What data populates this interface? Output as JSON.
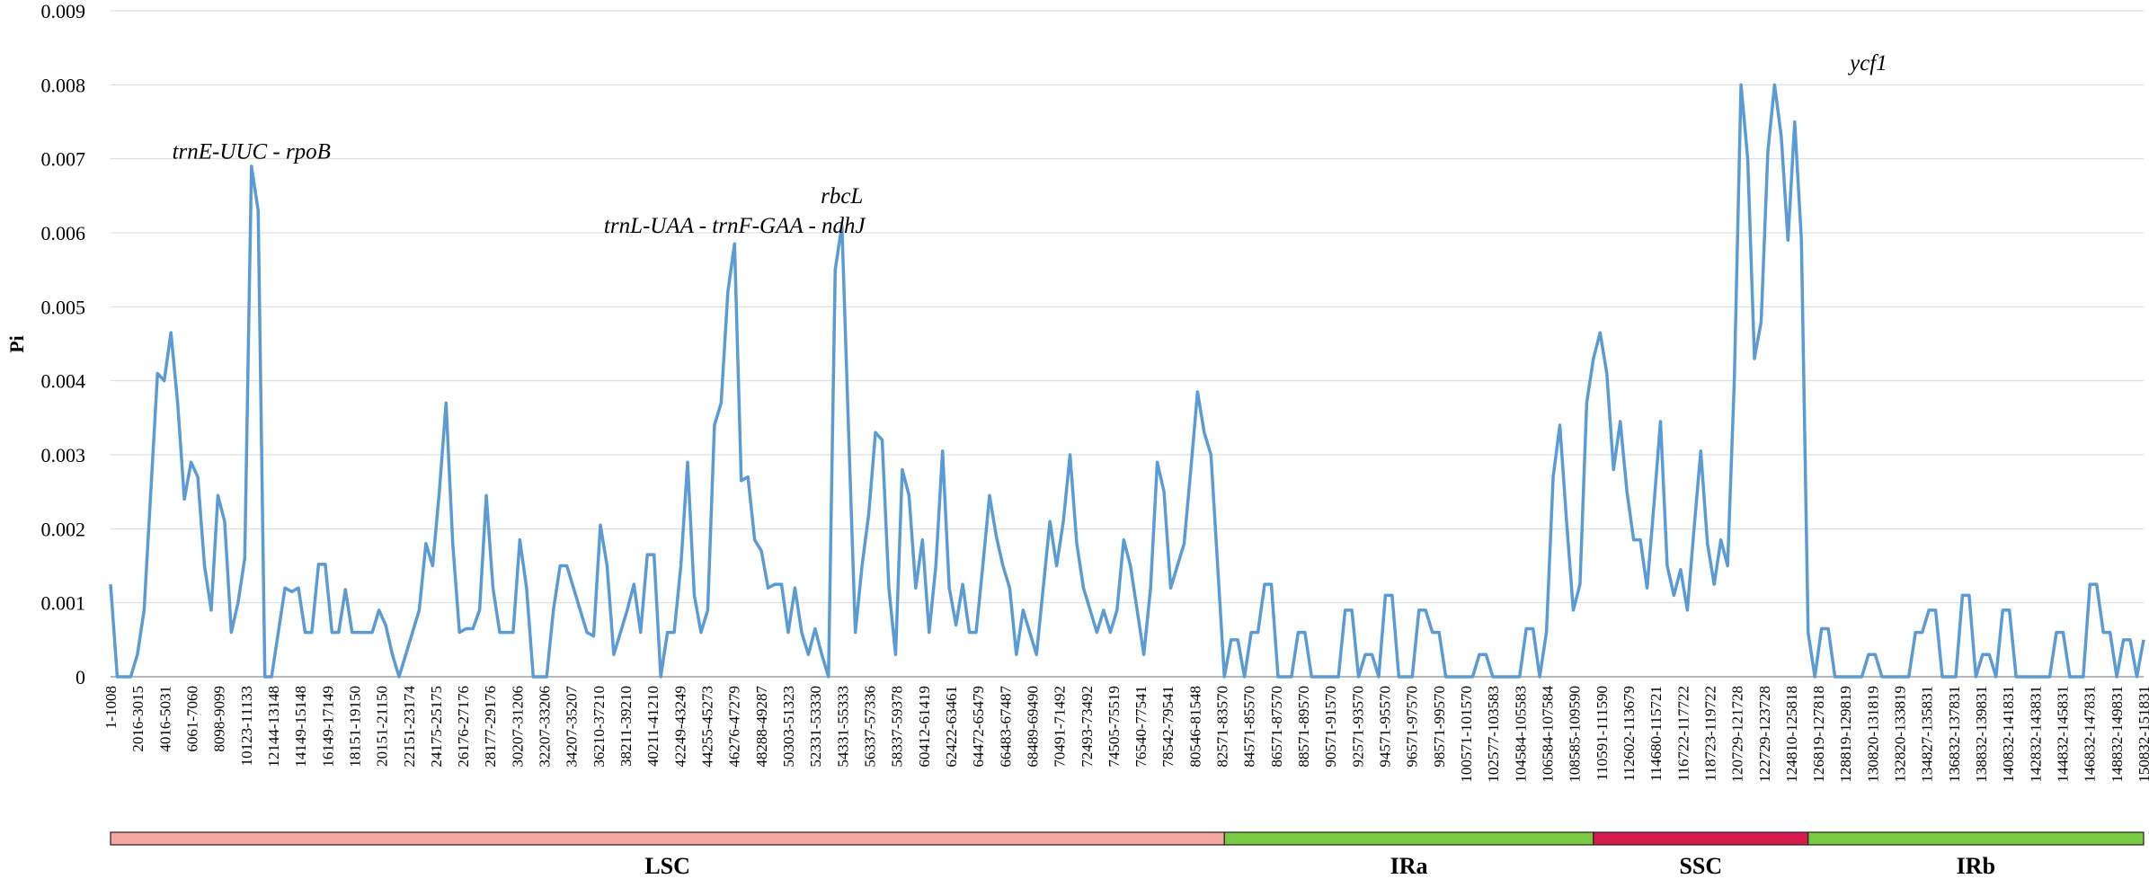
{
  "chart_data": {
    "type": "line",
    "ylabel": "Pi",
    "ylim": [
      0,
      0.009
    ],
    "y_ticks": [
      "0",
      "0.001",
      "0.002",
      "0.003",
      "0.004",
      "0.005",
      "0.006",
      "0.007",
      "0.008",
      "0.009"
    ],
    "grid": "horizontal",
    "x_tick_labels": [
      "1-1008",
      "2016-3015",
      "4016-5031",
      "6061-7060",
      "8098-9099",
      "10123-11133",
      "12144-13148",
      "14149-15148",
      "16149-17149",
      "18151-19150",
      "20151-21150",
      "22151-23174",
      "24175-25175",
      "26176-27176",
      "28177-29176",
      "30207-31206",
      "32207-33206",
      "34207-35207",
      "36210-37210",
      "38211-39210",
      "40211-41210",
      "42249-43249",
      "44255-45273",
      "46276-47279",
      "48288-49287",
      "50303-51323",
      "52331-53330",
      "54331-55333",
      "56337-57336",
      "58337-59378",
      "60412-61419",
      "62422-63461",
      "64472-65479",
      "66483-67487",
      "68489-69490",
      "70491-71492",
      "72493-73492",
      "74505-75519",
      "76540-77541",
      "78542-79541",
      "80546-81548",
      "82571-83570",
      "84571-85570",
      "86571-87570",
      "88571-89570",
      "90571-91570",
      "92571-93570",
      "94571-95570",
      "96571-97570",
      "98571-99570",
      "100571-101570",
      "102577-103583",
      "104584-105583",
      "106584-107584",
      "108585-109590",
      "110591-111590",
      "112602-113679",
      "114680-115721",
      "116722-117722",
      "118723-119722",
      "120729-121728",
      "122729-123728",
      "124810-125818",
      "126819-127818",
      "128819-129819",
      "130820-131819",
      "132820-133819",
      "134827-135831",
      "136832-137831",
      "138832-139831",
      "140832-141831",
      "142832-143831",
      "144832-145831",
      "146832-147831",
      "148832-149831",
      "150832-151831"
    ],
    "series": [
      {
        "values": [
          0.00125,
          0.0,
          0.0,
          0.0,
          0.0003,
          0.0009,
          0.0025,
          0.0041,
          0.004,
          0.00465,
          0.0037,
          0.0024,
          0.0029,
          0.0027,
          0.0015,
          0.0009,
          0.00245,
          0.0021,
          0.0006,
          0.001,
          0.0016,
          0.0069,
          0.0063,
          0.0,
          0.0,
          0.0006,
          0.0012,
          0.00115,
          0.0012,
          0.0006,
          0.0006,
          0.00152,
          0.00152,
          0.0006,
          0.0006,
          0.00118,
          0.0006,
          0.0006,
          0.0006,
          0.0006,
          0.0009,
          0.0007,
          0.0003,
          0.0,
          0.0003,
          0.0006,
          0.0009,
          0.0018,
          0.0015,
          0.0025,
          0.0037,
          0.0018,
          0.0006,
          0.00065,
          0.00065,
          0.0009,
          0.00245,
          0.0012,
          0.0006,
          0.0006,
          0.0006,
          0.00185,
          0.0012,
          0.0,
          0.0,
          0.0,
          0.0009,
          0.0015,
          0.0015,
          0.0012,
          0.0009,
          0.0006,
          0.00055,
          0.00205,
          0.0015,
          0.0003,
          0.0006,
          0.0009,
          0.00125,
          0.0006,
          0.00165,
          0.00165,
          0.0,
          0.0006,
          0.0006,
          0.0015,
          0.0029,
          0.0011,
          0.0006,
          0.0009,
          0.0034,
          0.0037,
          0.0052,
          0.00585,
          0.00265,
          0.0027,
          0.00185,
          0.0017,
          0.0012,
          0.00125,
          0.00125,
          0.0006,
          0.0012,
          0.0006,
          0.0003,
          0.00065,
          0.0003,
          0.0,
          0.0055,
          0.0061,
          0.0033,
          0.0006,
          0.0015,
          0.0022,
          0.0033,
          0.0032,
          0.0012,
          0.0003,
          0.0028,
          0.00245,
          0.0012,
          0.00185,
          0.0006,
          0.0015,
          0.00305,
          0.0012,
          0.0007,
          0.00125,
          0.0006,
          0.0006,
          0.0015,
          0.00245,
          0.0019,
          0.0015,
          0.0012,
          0.0003,
          0.0009,
          0.0006,
          0.0003,
          0.0012,
          0.0021,
          0.0015,
          0.0021,
          0.003,
          0.0018,
          0.0012,
          0.0009,
          0.0006,
          0.0009,
          0.0006,
          0.0009,
          0.00185,
          0.0015,
          0.0009,
          0.0003,
          0.0012,
          0.0029,
          0.0025,
          0.0012,
          0.0015,
          0.0018,
          0.0028,
          0.00385,
          0.0033,
          0.003,
          0.0015,
          0.0,
          0.0005,
          0.0005,
          0.0,
          0.0006,
          0.0006,
          0.00125,
          0.00125,
          0.0,
          0.0,
          0.0,
          0.0006,
          0.0006,
          0.0,
          0.0,
          0.0,
          0.0,
          0.0,
          0.0009,
          0.0009,
          0.0,
          0.0003,
          0.0003,
          0.0,
          0.0011,
          0.0011,
          0.0,
          0.0,
          0.0,
          0.0009,
          0.0009,
          0.0006,
          0.0006,
          0.0,
          0.0,
          0.0,
          0.0,
          0.0,
          0.0003,
          0.0003,
          0.0,
          0.0,
          0.0,
          0.0,
          0.0,
          0.00065,
          0.00065,
          0.0,
          0.0006,
          0.0027,
          0.0034,
          0.0021,
          0.0009,
          0.00125,
          0.0037,
          0.0043,
          0.00465,
          0.0041,
          0.0028,
          0.00345,
          0.0025,
          0.00185,
          0.00185,
          0.0012,
          0.0023,
          0.00345,
          0.0015,
          0.0011,
          0.00145,
          0.0009,
          0.002,
          0.00305,
          0.0018,
          0.00125,
          0.00185,
          0.0015,
          0.004,
          0.008,
          0.007,
          0.0043,
          0.0048,
          0.0071,
          0.008,
          0.0073,
          0.0059,
          0.0075,
          0.0059,
          0.0006,
          0.0,
          0.00065,
          0.00065,
          0.0,
          0.0,
          0.0,
          0.0,
          0.0,
          0.0003,
          0.0003,
          0.0,
          0.0,
          0.0,
          0.0,
          0.0,
          0.0006,
          0.0006,
          0.0009,
          0.0009,
          0.0,
          0.0,
          0.0,
          0.0011,
          0.0011,
          0.0,
          0.0003,
          0.0003,
          0.0,
          0.0009,
          0.0009,
          0.0,
          0.0,
          0.0,
          0.0,
          0.0,
          0.0,
          0.0006,
          0.0006,
          0.0,
          0.0,
          0.0,
          0.00125,
          0.00125,
          0.0006,
          0.0006,
          0.0,
          0.0005,
          0.0005,
          0.0,
          0.0005
        ]
      }
    ],
    "annotations": [
      {
        "text": "trnE-UUC - rpoB",
        "x_index": 21,
        "y": 0.007
      },
      {
        "text": "trnL-UAA - trnF-GAA - ndhJ",
        "x_index": 93,
        "y": 0.006
      },
      {
        "text": "rbcL",
        "x_index": 109,
        "y": 0.0064
      },
      {
        "text": "ycf1",
        "x_index": 262,
        "y": 0.0082
      }
    ],
    "regions": [
      {
        "name": "LSC",
        "start_index": 0,
        "end_index": 166,
        "color": "#f4a7a3"
      },
      {
        "name": "IRa",
        "start_index": 166,
        "end_index": 221,
        "color": "#7ac943"
      },
      {
        "name": "SSC",
        "start_index": 221,
        "end_index": 253,
        "color": "#d81b4f"
      },
      {
        "name": "IRb",
        "start_index": 253,
        "end_index": 303,
        "color": "#7ac943"
      }
    ]
  }
}
